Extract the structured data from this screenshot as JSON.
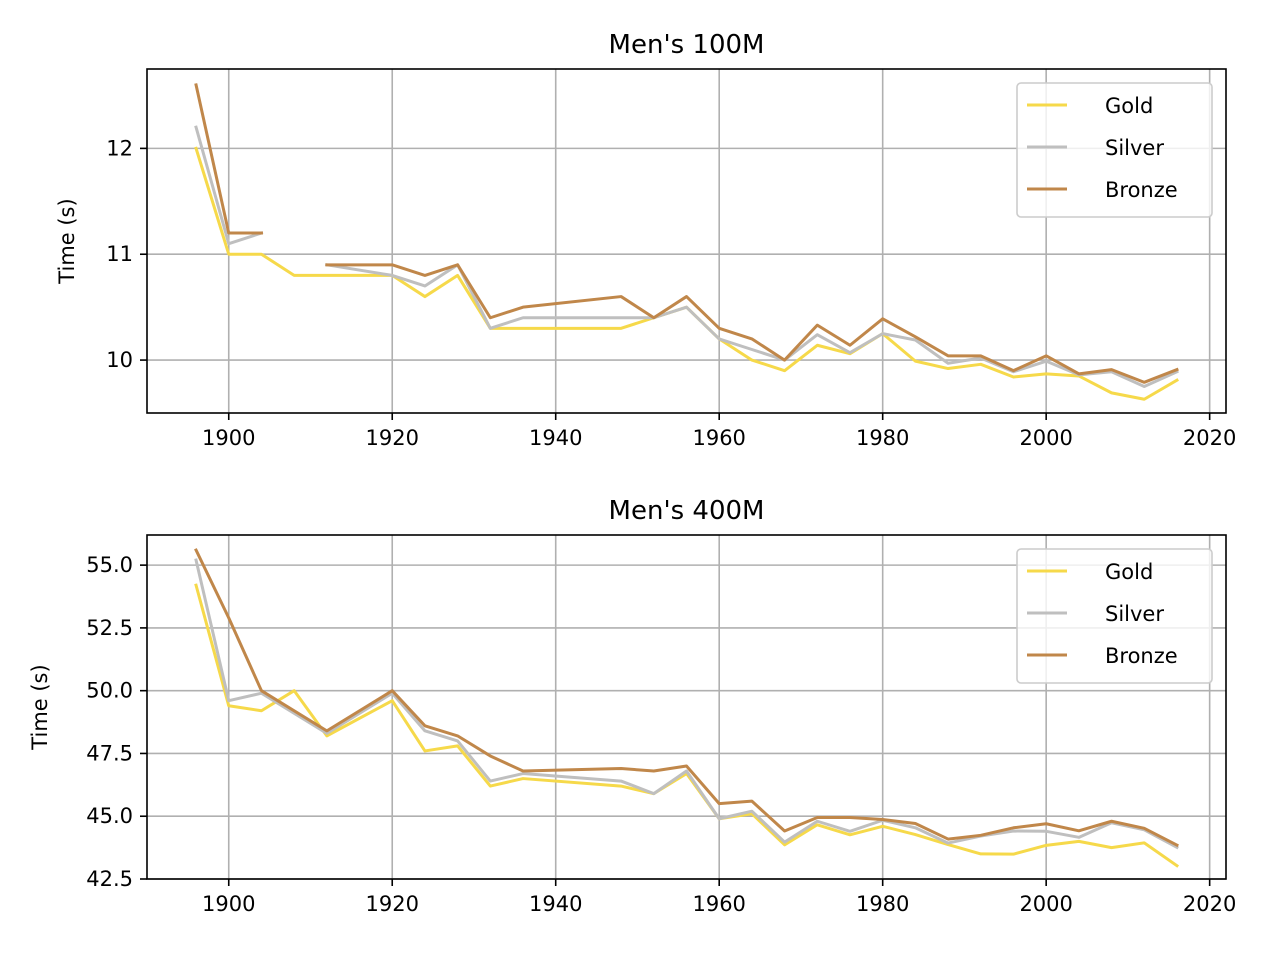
{
  "colors": {
    "gold": "#f6d94a",
    "silver": "#bfbfbf",
    "bronze": "#c0874a"
  },
  "chart_data": [
    {
      "type": "line",
      "title": "Men's 100M",
      "xlabel": "",
      "ylabel": "Time (s)",
      "xlim": [
        1890,
        2022
      ],
      "ylim": [
        9.5,
        12.75
      ],
      "xticks": [
        "1900",
        "1920",
        "1940",
        "1960",
        "1980",
        "2000",
        "2020"
      ],
      "xtick_values": [
        1900,
        1920,
        1940,
        1960,
        1980,
        2000,
        2020
      ],
      "yticks": [
        "10",
        "11",
        "12"
      ],
      "ytick_values": [
        10,
        11,
        12
      ],
      "grid": true,
      "legend": "top-right",
      "series": [
        {
          "name": "Gold",
          "color": "#f6d94a",
          "segments": [
            [
              [
                1896,
                12.0
              ],
              [
                1900,
                11.0
              ],
              [
                1904,
                11.0
              ],
              [
                1908,
                10.8
              ],
              [
                1912,
                10.8
              ],
              [
                1920,
                10.8
              ],
              [
                1924,
                10.6
              ],
              [
                1928,
                10.8
              ],
              [
                1932,
                10.3
              ],
              [
                1936,
                10.3
              ],
              [
                1948,
                10.3
              ],
              [
                1952,
                10.4
              ],
              [
                1956,
                10.5
              ],
              [
                1960,
                10.2
              ],
              [
                1964,
                10.0
              ],
              [
                1968,
                9.9
              ],
              [
                1972,
                10.14
              ],
              [
                1976,
                10.06
              ],
              [
                1980,
                10.25
              ],
              [
                1984,
                9.99
              ],
              [
                1988,
                9.92
              ],
              [
                1992,
                9.96
              ],
              [
                1996,
                9.84
              ],
              [
                2000,
                9.87
              ],
              [
                2004,
                9.85
              ],
              [
                2008,
                9.69
              ],
              [
                2012,
                9.63
              ],
              [
                2016,
                9.81
              ]
            ]
          ]
        },
        {
          "name": "Silver",
          "color": "#bfbfbf",
          "segments": [
            [
              [
                1896,
                12.2
              ],
              [
                1900,
                11.1
              ],
              [
                1904,
                11.2
              ]
            ],
            [
              [
                1912,
                10.9
              ],
              [
                1920,
                10.8
              ],
              [
                1924,
                10.7
              ],
              [
                1928,
                10.9
              ],
              [
                1932,
                10.3
              ],
              [
                1936,
                10.4
              ],
              [
                1948,
                10.4
              ],
              [
                1952,
                10.4
              ],
              [
                1956,
                10.5
              ],
              [
                1960,
                10.2
              ],
              [
                1964,
                10.1
              ],
              [
                1968,
                10.0
              ],
              [
                1972,
                10.24
              ],
              [
                1976,
                10.07
              ],
              [
                1980,
                10.25
              ],
              [
                1984,
                10.19
              ],
              [
                1988,
                9.97
              ],
              [
                1992,
                10.02
              ],
              [
                1996,
                9.89
              ],
              [
                2000,
                9.99
              ],
              [
                2004,
                9.86
              ],
              [
                2008,
                9.89
              ],
              [
                2012,
                9.75
              ],
              [
                2016,
                9.89
              ]
            ]
          ]
        },
        {
          "name": "Bronze",
          "color": "#c0874a",
          "segments": [
            [
              [
                1896,
                12.6
              ],
              [
                1900,
                11.2
              ],
              [
                1904,
                11.2
              ]
            ],
            [
              [
                1912,
                10.9
              ],
              [
                1920,
                10.9
              ],
              [
                1924,
                10.8
              ],
              [
                1928,
                10.9
              ],
              [
                1932,
                10.4
              ],
              [
                1936,
                10.5
              ],
              [
                1948,
                10.6
              ],
              [
                1952,
                10.4
              ],
              [
                1956,
                10.6
              ],
              [
                1960,
                10.3
              ],
              [
                1964,
                10.2
              ],
              [
                1968,
                10.0
              ],
              [
                1972,
                10.33
              ],
              [
                1976,
                10.14
              ],
              [
                1980,
                10.39
              ],
              [
                1984,
                10.22
              ],
              [
                1988,
                10.04
              ],
              [
                1992,
                10.04
              ],
              [
                1996,
                9.9
              ],
              [
                2000,
                10.04
              ],
              [
                2004,
                9.87
              ],
              [
                2008,
                9.91
              ],
              [
                2012,
                9.79
              ],
              [
                2016,
                9.91
              ]
            ]
          ]
        }
      ]
    },
    {
      "type": "line",
      "title": "Men's 400M",
      "xlabel": "",
      "ylabel": "Time (s)",
      "xlim": [
        1890,
        2022
      ],
      "ylim": [
        42.5,
        56.2
      ],
      "xticks": [
        "1900",
        "1920",
        "1940",
        "1960",
        "1980",
        "2000",
        "2020"
      ],
      "xtick_values": [
        1900,
        1920,
        1940,
        1960,
        1980,
        2000,
        2020
      ],
      "yticks": [
        "42.5",
        "45.0",
        "47.5",
        "50.0",
        "52.5",
        "55.0"
      ],
      "ytick_values": [
        42.5,
        45.0,
        47.5,
        50.0,
        52.5,
        55.0
      ],
      "grid": true,
      "legend": "top-right",
      "series": [
        {
          "name": "Gold",
          "color": "#f6d94a",
          "segments": [
            [
              [
                1896,
                54.2
              ],
              [
                1900,
                49.4
              ],
              [
                1904,
                49.2
              ],
              [
                1908,
                50.0
              ],
              [
                1912,
                48.2
              ],
              [
                1920,
                49.6
              ],
              [
                1924,
                47.6
              ],
              [
                1928,
                47.8
              ],
              [
                1932,
                46.2
              ],
              [
                1936,
                46.5
              ],
              [
                1948,
                46.2
              ],
              [
                1952,
                45.9
              ],
              [
                1956,
                46.7
              ],
              [
                1960,
                44.9
              ],
              [
                1964,
                45.1
              ],
              [
                1968,
                43.86
              ],
              [
                1972,
                44.66
              ],
              [
                1976,
                44.26
              ],
              [
                1980,
                44.6
              ],
              [
                1984,
                44.27
              ],
              [
                1988,
                43.87
              ],
              [
                1992,
                43.5
              ],
              [
                1996,
                43.49
              ],
              [
                2000,
                43.84
              ],
              [
                2004,
                44.0
              ],
              [
                2008,
                43.75
              ],
              [
                2012,
                43.94
              ],
              [
                2016,
                43.03
              ]
            ]
          ]
        },
        {
          "name": "Silver",
          "color": "#bfbfbf",
          "segments": [
            [
              [
                1896,
                55.2
              ],
              [
                1900,
                49.6
              ],
              [
                1904,
                49.9
              ],
              [
                1912,
                48.3
              ],
              [
                1920,
                49.9
              ],
              [
                1924,
                48.4
              ],
              [
                1928,
                48.0
              ],
              [
                1932,
                46.4
              ],
              [
                1936,
                46.7
              ],
              [
                1948,
                46.4
              ],
              [
                1952,
                45.9
              ],
              [
                1956,
                46.8
              ],
              [
                1960,
                44.9
              ],
              [
                1964,
                45.2
              ],
              [
                1968,
                43.97
              ],
              [
                1972,
                44.8
              ],
              [
                1976,
                44.4
              ],
              [
                1980,
                44.84
              ],
              [
                1984,
                44.54
              ],
              [
                1988,
                43.93
              ],
              [
                1992,
                44.21
              ],
              [
                1996,
                44.41
              ],
              [
                2000,
                44.4
              ],
              [
                2004,
                44.16
              ],
              [
                2008,
                44.74
              ],
              [
                2012,
                44.46
              ],
              [
                2016,
                43.76
              ]
            ]
          ]
        },
        {
          "name": "Bronze",
          "color": "#c0874a",
          "segments": [
            [
              [
                1896,
                55.6
              ],
              [
                1900,
                52.9
              ],
              [
                1904,
                50.0
              ],
              [
                1912,
                48.4
              ],
              [
                1920,
                50.0
              ],
              [
                1924,
                48.6
              ],
              [
                1928,
                48.2
              ],
              [
                1932,
                47.4
              ],
              [
                1936,
                46.8
              ],
              [
                1948,
                46.9
              ],
              [
                1952,
                46.8
              ],
              [
                1956,
                47.0
              ],
              [
                1960,
                45.5
              ],
              [
                1964,
                45.6
              ],
              [
                1968,
                44.41
              ],
              [
                1972,
                44.95
              ],
              [
                1976,
                44.95
              ],
              [
                1980,
                44.87
              ],
              [
                1984,
                44.71
              ],
              [
                1988,
                44.09
              ],
              [
                1992,
                44.24
              ],
              [
                1996,
                44.54
              ],
              [
                2000,
                44.7
              ],
              [
                2004,
                44.42
              ],
              [
                2008,
                44.8
              ],
              [
                2012,
                44.52
              ],
              [
                2016,
                43.85
              ]
            ]
          ]
        }
      ]
    }
  ]
}
